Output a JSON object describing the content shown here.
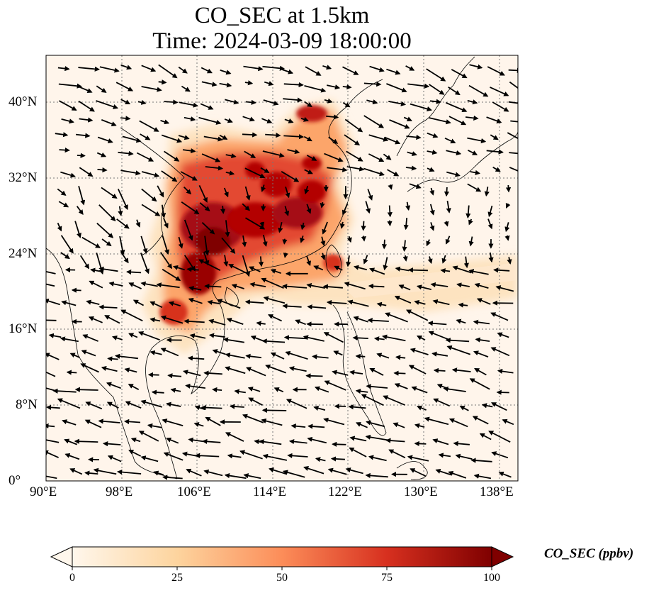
{
  "title": {
    "line1": "CO_SEC at 1.5km",
    "line2": "Time: 2024-03-09 18:00:00"
  },
  "map": {
    "projection": "PlateCarree",
    "lon_range": [
      90,
      140
    ],
    "lat_range": [
      0,
      45
    ],
    "lat_ticks": [
      {
        "value": 0,
        "label": "0°"
      },
      {
        "value": 8,
        "label": "8°N"
      },
      {
        "value": 16,
        "label": "16°N"
      },
      {
        "value": 24,
        "label": "24°N"
      },
      {
        "value": 32,
        "label": "32°N"
      },
      {
        "value": 40,
        "label": "40°N"
      }
    ],
    "lon_ticks": [
      {
        "value": 90,
        "label": "90°E"
      },
      {
        "value": 98,
        "label": "98°E"
      },
      {
        "value": 106,
        "label": "106°E"
      },
      {
        "value": 114,
        "label": "114°E"
      },
      {
        "value": 122,
        "label": "122°E"
      },
      {
        "value": 130,
        "label": "130°E"
      },
      {
        "value": 138,
        "label": "138°E"
      }
    ],
    "gridlines": "dotted",
    "background_color": "#fff5eb",
    "field": "CO_SEC concentration, highest over eastern China and southern China/northern Vietnam; a plume extends east across the Pacific near 20-23°N",
    "wind_vectors": true
  },
  "colorbar": {
    "label": "CO_SEC (ppbv)",
    "min": 0,
    "max": 100,
    "ticks": [
      "0",
      "25",
      "50",
      "75",
      "100"
    ],
    "colormap": "OrRd",
    "extend": "both",
    "colors": [
      "#fff7ec",
      "#fdd49e",
      "#fc8d59",
      "#d7301f",
      "#7f0000"
    ]
  }
}
